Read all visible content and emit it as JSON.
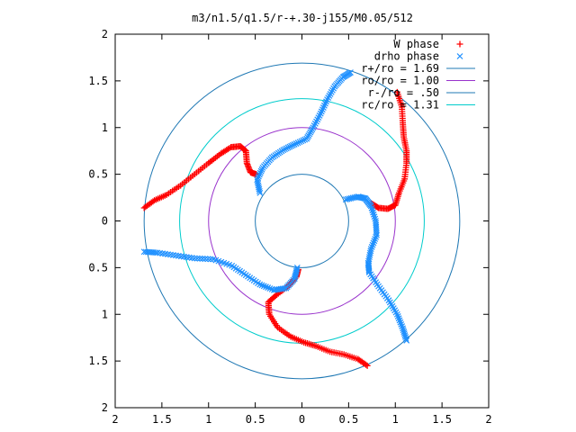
{
  "chart_data": {
    "type": "scatter",
    "title": "m3/n1.5/q1.5/r-+.30-j155/M0.05/512",
    "xlabel": "",
    "ylabel": "",
    "xlim": [
      -2,
      2
    ],
    "ylim": [
      -2,
      2
    ],
    "x_ticks": [
      -2,
      -1.5,
      -1,
      -0.5,
      0,
      0.5,
      1,
      1.5,
      2
    ],
    "y_ticks": [
      -2,
      -1.5,
      -1,
      -0.5,
      0,
      0.5,
      1,
      1.5,
      2
    ],
    "x_tick_labels": [
      "2",
      "1.5",
      "1",
      "0.5",
      "0",
      "0.5",
      "1",
      "1.5",
      "2"
    ],
    "y_tick_labels": [
      "2",
      "1.5",
      "1",
      "0.5",
      "0",
      "0.5",
      "1",
      "1.5",
      "2"
    ],
    "grid": false,
    "legend_position": "top-right",
    "series": [
      {
        "name": "W phase",
        "kind": "points",
        "marker": "+",
        "color": "#ff0000",
        "arms": [
          [
            [
              1.02,
              1.38
            ],
            [
              1.07,
              1.22
            ],
            [
              1.08,
              1.05
            ],
            [
              1.09,
              0.9
            ],
            [
              1.12,
              0.75
            ],
            [
              1.12,
              0.62
            ],
            [
              1.1,
              0.45
            ],
            [
              1.04,
              0.3
            ],
            [
              1.0,
              0.17
            ],
            [
              0.92,
              0.13
            ],
            [
              0.82,
              0.14
            ],
            [
              0.74,
              0.19
            ]
          ],
          [
            [
              0.7,
              -1.55
            ],
            [
              0.6,
              -1.48
            ],
            [
              0.45,
              -1.43
            ],
            [
              0.3,
              -1.4
            ],
            [
              0.15,
              -1.34
            ],
            [
              0.02,
              -1.3
            ],
            [
              -0.12,
              -1.24
            ],
            [
              -0.26,
              -1.14
            ],
            [
              -0.35,
              -1.0
            ],
            [
              -0.36,
              -0.87
            ],
            [
              -0.27,
              -0.79
            ],
            [
              -0.15,
              -0.7
            ],
            [
              -0.06,
              -0.6
            ],
            [
              -0.04,
              -0.52
            ]
          ],
          [
            [
              -1.69,
              0.14
            ],
            [
              -1.58,
              0.22
            ],
            [
              -1.45,
              0.28
            ],
            [
              -1.3,
              0.38
            ],
            [
              -1.15,
              0.5
            ],
            [
              -1.0,
              0.62
            ],
            [
              -0.87,
              0.72
            ],
            [
              -0.76,
              0.79
            ],
            [
              -0.66,
              0.8
            ],
            [
              -0.6,
              0.75
            ],
            [
              -0.59,
              0.62
            ],
            [
              -0.55,
              0.52
            ],
            [
              -0.49,
              0.5
            ]
          ]
        ]
      },
      {
        "name": "drho phase",
        "kind": "points",
        "marker": "x",
        "color": "#1e90ff",
        "arms": [
          [
            [
              0.52,
              1.59
            ],
            [
              0.44,
              1.54
            ],
            [
              0.35,
              1.44
            ],
            [
              0.27,
              1.3
            ],
            [
              0.2,
              1.15
            ],
            [
              0.12,
              1.0
            ],
            [
              0.05,
              0.88
            ],
            [
              -0.08,
              0.82
            ],
            [
              -0.2,
              0.76
            ],
            [
              -0.32,
              0.68
            ],
            [
              -0.42,
              0.57
            ],
            [
              -0.48,
              0.44
            ],
            [
              -0.45,
              0.3
            ]
          ],
          [
            [
              0.47,
              0.23
            ],
            [
              0.6,
              0.26
            ],
            [
              0.68,
              0.24
            ],
            [
              0.74,
              0.16
            ],
            [
              0.79,
              0.0
            ],
            [
              0.8,
              -0.15
            ],
            [
              0.74,
              -0.3
            ],
            [
              0.71,
              -0.45
            ],
            [
              0.72,
              -0.55
            ],
            [
              0.82,
              -0.7
            ],
            [
              0.93,
              -0.85
            ],
            [
              1.02,
              -1.0
            ],
            [
              1.08,
              -1.15
            ],
            [
              1.12,
              -1.28
            ]
          ],
          [
            [
              -0.05,
              -0.5
            ],
            [
              -0.08,
              -0.62
            ],
            [
              -0.17,
              -0.72
            ],
            [
              -0.3,
              -0.74
            ],
            [
              -0.45,
              -0.68
            ],
            [
              -0.6,
              -0.58
            ],
            [
              -0.75,
              -0.48
            ],
            [
              -0.95,
              -0.41
            ],
            [
              -1.15,
              -0.4
            ],
            [
              -1.35,
              -0.37
            ],
            [
              -1.55,
              -0.34
            ],
            [
              -1.69,
              -0.33
            ]
          ]
        ]
      },
      {
        "name": "r+/ro = 1.69",
        "kind": "circle",
        "radius": 1.69,
        "color": "#1f78b4"
      },
      {
        "name": "ro/ro = 1.00",
        "kind": "circle",
        "radius": 1.0,
        "color": "#9932cc"
      },
      {
        "name": "r-/ro = .50",
        "kind": "circle",
        "radius": 0.5,
        "color": "#1f78b4"
      },
      {
        "name": "rc/ro = 1.31",
        "kind": "circle",
        "radius": 1.31,
        "color": "#00cccc"
      }
    ]
  }
}
